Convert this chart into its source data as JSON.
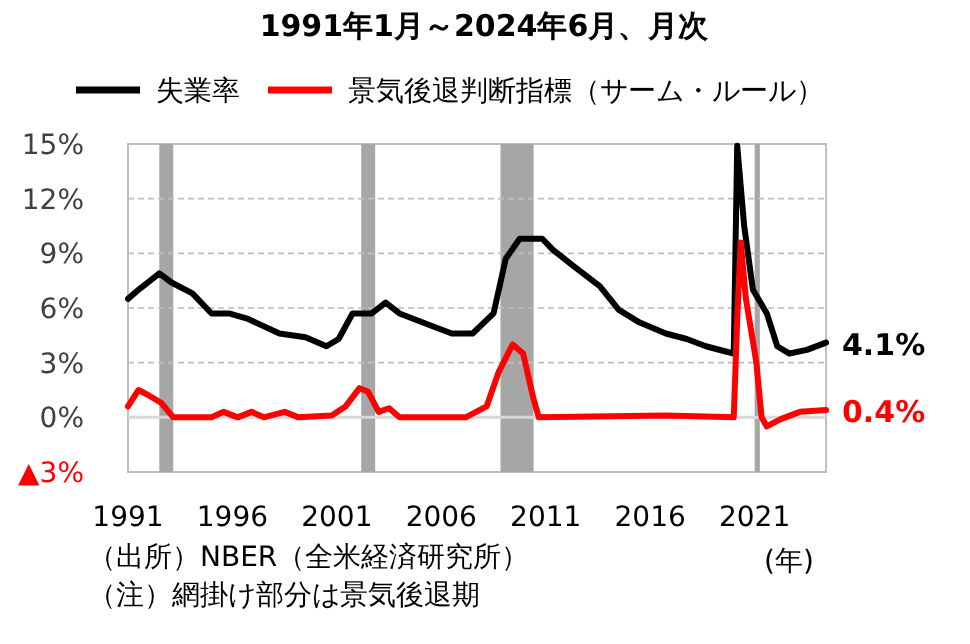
{
  "chart_data": {
    "type": "line",
    "title": "1991年1月～2024年6月、月次",
    "xlabel": "(年)",
    "annotations": [
      "（出所）NBER（全米経済研究所）",
      "（注）網掛け部分は景気後退期"
    ],
    "legend": "top",
    "grid": "y",
    "marker": "none",
    "line_style": "solid",
    "xlim": [
      "1991-01",
      "2024-06"
    ],
    "xticks": [
      {
        "value": "1991-01",
        "label": "1991"
      },
      {
        "value": "1996-01",
        "label": "1996"
      },
      {
        "value": "2001-01",
        "label": "2001"
      },
      {
        "value": "2006-01",
        "label": "2006"
      },
      {
        "value": "2011-01",
        "label": "2011"
      },
      {
        "value": "2016-01",
        "label": "2016"
      },
      {
        "value": "2021-01",
        "label": "2021"
      }
    ],
    "ylim": [
      -3,
      15
    ],
    "yticks": [
      {
        "value": -3,
        "label": "▲3%"
      },
      {
        "value": 0,
        "label": "0%"
      },
      {
        "value": 3,
        "label": "3%"
      },
      {
        "value": 6,
        "label": "6%"
      },
      {
        "value": 9,
        "label": "9%"
      },
      {
        "value": 12,
        "label": "12%"
      },
      {
        "value": 15,
        "label": "15%"
      }
    ],
    "ref_lines": [
      {
        "axis": "y",
        "value": 0,
        "color": "#d9d9d9"
      }
    ],
    "bands": [
      {
        "axis": "x",
        "from": "1992-07",
        "to": "1993-03",
        "color": "#a6a6a6"
      },
      {
        "axis": "x",
        "from": "2002-03",
        "to": "2002-11",
        "color": "#a6a6a6"
      },
      {
        "axis": "x",
        "from": "2008-11",
        "to": "2010-06",
        "color": "#a6a6a6"
      },
      {
        "axis": "x",
        "from": "2021-01",
        "to": "2021-04",
        "color": "#a6a6a6"
      }
    ],
    "series": [
      {
        "name": "失業率",
        "color": "#000000",
        "x": [
          "1991-01",
          "1991-07",
          "1992-07",
          "1993-02",
          "1994-02",
          "1995-01",
          "1995-11",
          "1996-10",
          "1998-04",
          "1999-07",
          "2000-07",
          "2001-02",
          "2001-10",
          "2002-09",
          "2003-05",
          "2004-01",
          "2005-08",
          "2006-07",
          "2007-07",
          "2008-07",
          "2009-02",
          "2009-10",
          "2010-06",
          "2010-11",
          "2011-05",
          "2012-05",
          "2013-08",
          "2014-07",
          "2015-07",
          "2016-10",
          "2017-10",
          "2018-09",
          "2019-09",
          "2020-01",
          "2020-03",
          "2020-07",
          "2020-12",
          "2021-08",
          "2022-02",
          "2022-09",
          "2023-07",
          "2024-06"
        ],
        "values": [
          6.5,
          7.0,
          7.9,
          7.4,
          6.8,
          5.7,
          5.7,
          5.4,
          4.6,
          4.4,
          3.9,
          4.3,
          5.7,
          5.7,
          6.3,
          5.7,
          5.0,
          4.6,
          4.6,
          5.7,
          8.7,
          9.8,
          9.8,
          9.8,
          9.2,
          8.3,
          7.2,
          5.9,
          5.2,
          4.6,
          4.3,
          3.9,
          3.6,
          3.5,
          14.9,
          10.5,
          7.0,
          5.7,
          3.9,
          3.5,
          3.7,
          4.1
        ],
        "value_labels": [
          null,
          null,
          null,
          null,
          null,
          null,
          null,
          null,
          null,
          null,
          null,
          null,
          null,
          null,
          null,
          null,
          null,
          null,
          null,
          null,
          null,
          null,
          null,
          null,
          null,
          null,
          null,
          null,
          null,
          null,
          null,
          null,
          null,
          null,
          null,
          null,
          null,
          null,
          null,
          null,
          null,
          "4.1%"
        ]
      },
      {
        "name": "景気後退判断指標（サーム・ルール）",
        "color": "#ff0000",
        "x": [
          "1991-01",
          "1991-07",
          "1992-01",
          "1992-08",
          "1993-03",
          "1995-01",
          "1995-08",
          "1996-04",
          "1996-12",
          "1997-07",
          "1998-07",
          "1999-03",
          "2000-10",
          "2001-06",
          "2002-02",
          "2002-07",
          "2003-01",
          "2003-07",
          "2004-01",
          "2007-03",
          "2008-03",
          "2008-10",
          "2009-06",
          "2009-12",
          "2010-06",
          "2010-09",
          "2016-10",
          "2020-01",
          "2020-03",
          "2020-05",
          "2020-08",
          "2021-02",
          "2021-05",
          "2021-08",
          "2022-04",
          "2023-03",
          "2024-06"
        ],
        "values": [
          0.6,
          1.5,
          1.2,
          0.8,
          0,
          0,
          0.3,
          0,
          0.3,
          0,
          0.3,
          0,
          0.1,
          0.6,
          1.6,
          1.4,
          0.3,
          0.5,
          0,
          0,
          0.6,
          2.5,
          4.0,
          3.5,
          1.0,
          0,
          0.1,
          0,
          5.4,
          9.6,
          6.5,
          3.0,
          0,
          -0.5,
          -0.1,
          0.3,
          0.4
        ],
        "value_labels": [
          null,
          null,
          null,
          null,
          null,
          null,
          null,
          null,
          null,
          null,
          null,
          null,
          null,
          null,
          null,
          null,
          null,
          null,
          null,
          null,
          null,
          null,
          null,
          null,
          null,
          null,
          null,
          null,
          null,
          null,
          null,
          null,
          null,
          null,
          null,
          null,
          "0.4%"
        ]
      }
    ]
  }
}
